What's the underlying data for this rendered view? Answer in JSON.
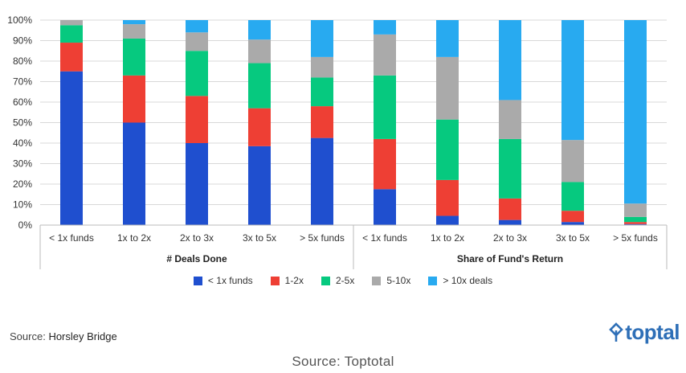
{
  "chart_data": {
    "type": "bar",
    "stacked": true,
    "normalized": true,
    "ylim": [
      0,
      100
    ],
    "yticks": [
      "0%",
      "10%",
      "20%",
      "30%",
      "40%",
      "50%",
      "60%",
      "70%",
      "80%",
      "90%",
      "100%"
    ],
    "categories": [
      "< 1x funds",
      "1x to 2x",
      "2x to 3x",
      "3x to 5x",
      "> 5x funds",
      "< 1x funds",
      "1x to 2x",
      "2x to 3x",
      "3x to 5x",
      "> 5x funds"
    ],
    "groups": [
      {
        "label": "# Deals Done",
        "categories": [
          "< 1x funds",
          "1x to 2x",
          "2x to 3x",
          "3x to 5x",
          "> 5x funds"
        ]
      },
      {
        "label": "Share of Fund's Return",
        "categories": [
          "< 1x funds",
          "1x to 2x",
          "2x to 3x",
          "3x to 5x",
          "> 5x funds"
        ]
      }
    ],
    "series": [
      {
        "name": "< 1x funds",
        "color": "#1f4fcf",
        "values": [
          75,
          50,
          40,
          38.5,
          42.5,
          17.5,
          4.5,
          2.5,
          1.5,
          0.5
        ]
      },
      {
        "name": "1-2x",
        "color": "#ee3f34",
        "values": [
          14,
          23,
          23,
          18.5,
          15.5,
          24.5,
          17.5,
          10.5,
          5.5,
          1
        ]
      },
      {
        "name": "2-5x",
        "color": "#06c97f",
        "values": [
          8.5,
          18,
          22,
          22,
          14,
          31,
          29.5,
          29,
          14,
          2.5
        ]
      },
      {
        "name": "5-10x",
        "color": "#aaaaaa",
        "values": [
          2.5,
          7,
          9,
          11.5,
          10,
          20,
          30.5,
          19,
          20.5,
          6.5
        ]
      },
      {
        "name": "> 10x deals",
        "color": "#28aaf0",
        "values": [
          0,
          2,
          6,
          9.5,
          18,
          7,
          18,
          39,
          58.5,
          89.5
        ]
      }
    ],
    "legend_position": "bottom",
    "grid": true
  },
  "source_label": "Source:",
  "source_name": "Horsley Bridge",
  "brand": {
    "name": "toptal",
    "color": "#2e6fb7"
  },
  "caption": "Source: Toptotal"
}
